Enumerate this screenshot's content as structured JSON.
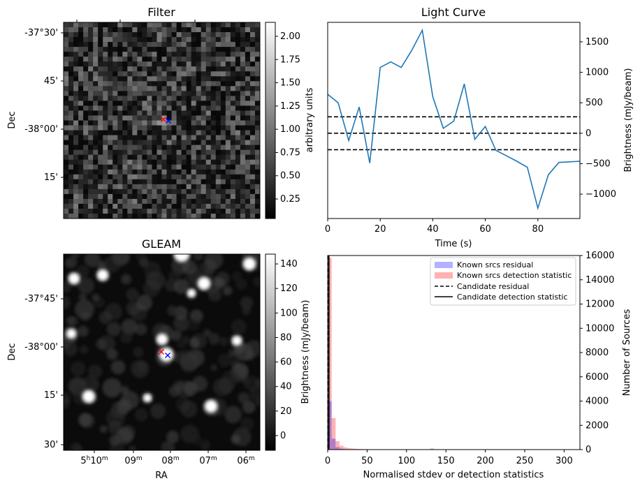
{
  "chart_data": [
    {
      "type": "heatmap",
      "title": "Filter",
      "xlabel": "",
      "ylabel": "Dec",
      "y_tick_labels": [
        "-37°30'",
        "45'",
        "-38°00'",
        "15'"
      ],
      "colorbar": {
        "label": "arbitrary units",
        "ticks": [
          "2.00",
          "1.75",
          "1.50",
          "1.25",
          "1.00",
          "0.75",
          "0.50",
          "0.25"
        ],
        "range": [
          0.04,
          2.15
        ],
        "colormap": "gray"
      },
      "markers": [
        {
          "symbol": "x",
          "color": "#ff0000"
        },
        {
          "symbol": "x",
          "color": "#0000ff"
        }
      ]
    },
    {
      "type": "line",
      "title": "Light Curve",
      "xlabel": "Time (s)",
      "ylabel": "Brightness (mJy/beam)",
      "xlim": [
        0,
        96
      ],
      "ylim": [
        -1400,
        1820
      ],
      "x_ticks": [
        0,
        20,
        40,
        60,
        80
      ],
      "y_ticks": [
        -1000,
        -500,
        0,
        500,
        1000,
        1500
      ],
      "series": [
        {
          "color": "#1f77b4",
          "x": [
            0,
            4,
            8,
            12,
            16,
            20,
            24,
            28,
            32,
            36,
            40,
            44,
            48,
            52,
            56,
            60,
            64,
            68,
            72,
            76,
            80,
            84,
            88,
            92,
            96
          ],
          "y": [
            640,
            500,
            -120,
            430,
            -490,
            1080,
            1170,
            1080,
            1360,
            1690,
            600,
            80,
            200,
            810,
            -100,
            110,
            -280,
            -370,
            -460,
            -560,
            -1230,
            -680,
            -480,
            -470,
            -460
          ]
        }
      ],
      "hlines": [
        {
          "y": 270,
          "style": "dashed",
          "color": "#000000"
        },
        {
          "y": 0,
          "style": "dashed",
          "color": "#000000"
        },
        {
          "y": -270,
          "style": "dashed",
          "color": "#000000"
        }
      ]
    },
    {
      "type": "heatmap",
      "title": "GLEAM",
      "xlabel": "RA",
      "ylabel": "Dec",
      "x_tick_labels": [
        "5h10m",
        "09m",
        "08m",
        "07m",
        "06m"
      ],
      "y_tick_labels": [
        "-37°45'",
        "-38°00'",
        "15'",
        "30'"
      ],
      "colorbar": {
        "label": "Brightness (mJy/beam)",
        "ticks": [
          "140",
          "120",
          "100",
          "80",
          "60",
          "40",
          "20",
          "0"
        ],
        "range": [
          -12,
          148
        ],
        "colormap": "gray"
      },
      "markers": [
        {
          "symbol": "x",
          "color": "#ff0000"
        },
        {
          "symbol": "x",
          "color": "#0000ff"
        }
      ]
    },
    {
      "type": "bar",
      "title": "",
      "xlabel": "Normalised stdev or detection statistics",
      "ylabel": "Number of Sources",
      "xlim": [
        0,
        320
      ],
      "ylim": [
        0,
        16000
      ],
      "x_ticks": [
        0,
        50,
        100,
        150,
        200,
        250,
        300
      ],
      "y_ticks": [
        0,
        2000,
        4000,
        6000,
        8000,
        10000,
        12000,
        14000,
        16000
      ],
      "legend_position": "top-right",
      "bin_edges": [
        0,
        5,
        10,
        15,
        20,
        25,
        30,
        35,
        40,
        45,
        50,
        55,
        60,
        65,
        70,
        75,
        80,
        85,
        90,
        95,
        100,
        105,
        110,
        115,
        120,
        125,
        130,
        135,
        140,
        145,
        150
      ],
      "series": [
        {
          "name": "Known srcs residual",
          "color": "#0000ff",
          "alpha": 0.3,
          "values": [
            4000,
            900,
            200,
            80,
            40,
            20,
            10,
            5,
            3,
            2,
            1,
            1,
            0,
            0,
            0,
            0,
            0,
            0,
            0,
            0,
            0,
            0,
            0,
            0,
            0,
            0,
            0,
            0,
            0,
            0
          ]
        },
        {
          "name": "Known srcs detection statistic",
          "color": "#ff0000",
          "alpha": 0.3,
          "values": [
            15800,
            2600,
            700,
            320,
            180,
            120,
            90,
            60,
            50,
            40,
            30,
            25,
            20,
            18,
            15,
            12,
            10,
            9,
            8,
            7,
            6,
            5,
            4,
            4,
            3,
            3,
            100,
            2,
            2,
            1
          ]
        }
      ],
      "vlines": [
        {
          "name": "Candidate residual",
          "x": 1,
          "style": "dashed",
          "color": "#000000"
        },
        {
          "name": "Candidate detection statistic",
          "x": 1.6,
          "style": "solid",
          "color": "#000000"
        }
      ]
    }
  ]
}
